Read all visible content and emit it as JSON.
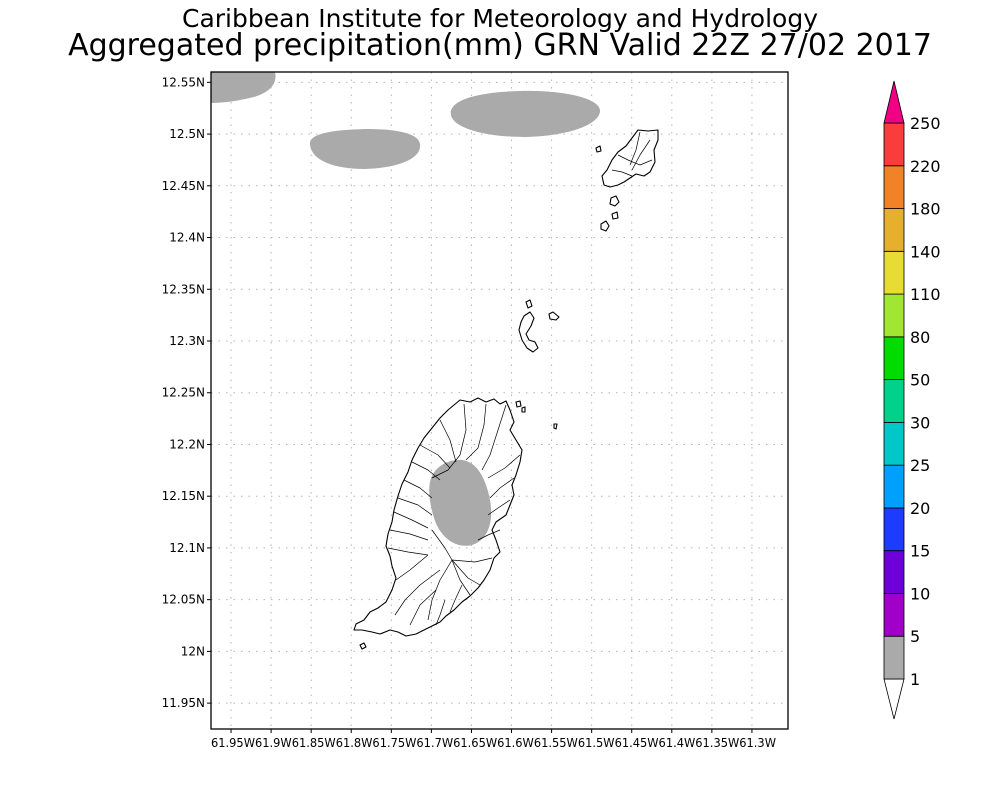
{
  "title": {
    "line1": "Caribbean Institute for Meteorology and Hydrology",
    "line2": "Aggregated precipitation(mm) GRN Valid 22Z 27/02 2017"
  },
  "map": {
    "lon_range": [
      -61.975,
      -61.255
    ],
    "lat_range": [
      11.925,
      12.56
    ],
    "lat_ticks": [
      {
        "value": 12.55,
        "label": "12.55N"
      },
      {
        "value": 12.5,
        "label": "12.5N"
      },
      {
        "value": 12.45,
        "label": "12.45N"
      },
      {
        "value": 12.4,
        "label": "12.4N"
      },
      {
        "value": 12.35,
        "label": "12.35N"
      },
      {
        "value": 12.3,
        "label": "12.3N"
      },
      {
        "value": 12.25,
        "label": "12.25N"
      },
      {
        "value": 12.2,
        "label": "12.2N"
      },
      {
        "value": 12.15,
        "label": "12.15N"
      },
      {
        "value": 12.1,
        "label": "12.1N"
      },
      {
        "value": 12.05,
        "label": "12.05N"
      },
      {
        "value": 12.0,
        "label": "12N"
      },
      {
        "value": 11.95,
        "label": "11.95N"
      }
    ],
    "lon_tick_values": [
      -61.95,
      -61.9,
      -61.85,
      -61.8,
      -61.75,
      -61.7,
      -61.65,
      -61.6,
      -61.55,
      -61.5,
      -61.45,
      -61.4,
      -61.35,
      -61.3
    ],
    "lon_axis_text": "61.95W61.9W61.85W61.8W61.75W61.7W61.65W61.6W61.55W61.5W61.45W61.4W61.35W61.3W",
    "grid": true,
    "precip_color": "#aaaaaa",
    "land_outline_color": "#000000"
  },
  "colorbar": {
    "labels": [
      "1",
      "5",
      "10",
      "15",
      "20",
      "25",
      "30",
      "50",
      "80",
      "110",
      "140",
      "180",
      "220",
      "250"
    ],
    "colors": [
      "#aaaaaa",
      "#a000c8",
      "#6e00dc",
      "#1e3cff",
      "#00a0ff",
      "#00c8c8",
      "#00d28c",
      "#00dc00",
      "#a0e632",
      "#e6dc32",
      "#e6af2d",
      "#f08228",
      "#fa3c3c",
      "#f00082"
    ],
    "below_color": "#ffffff",
    "above_color": "#f00082"
  }
}
